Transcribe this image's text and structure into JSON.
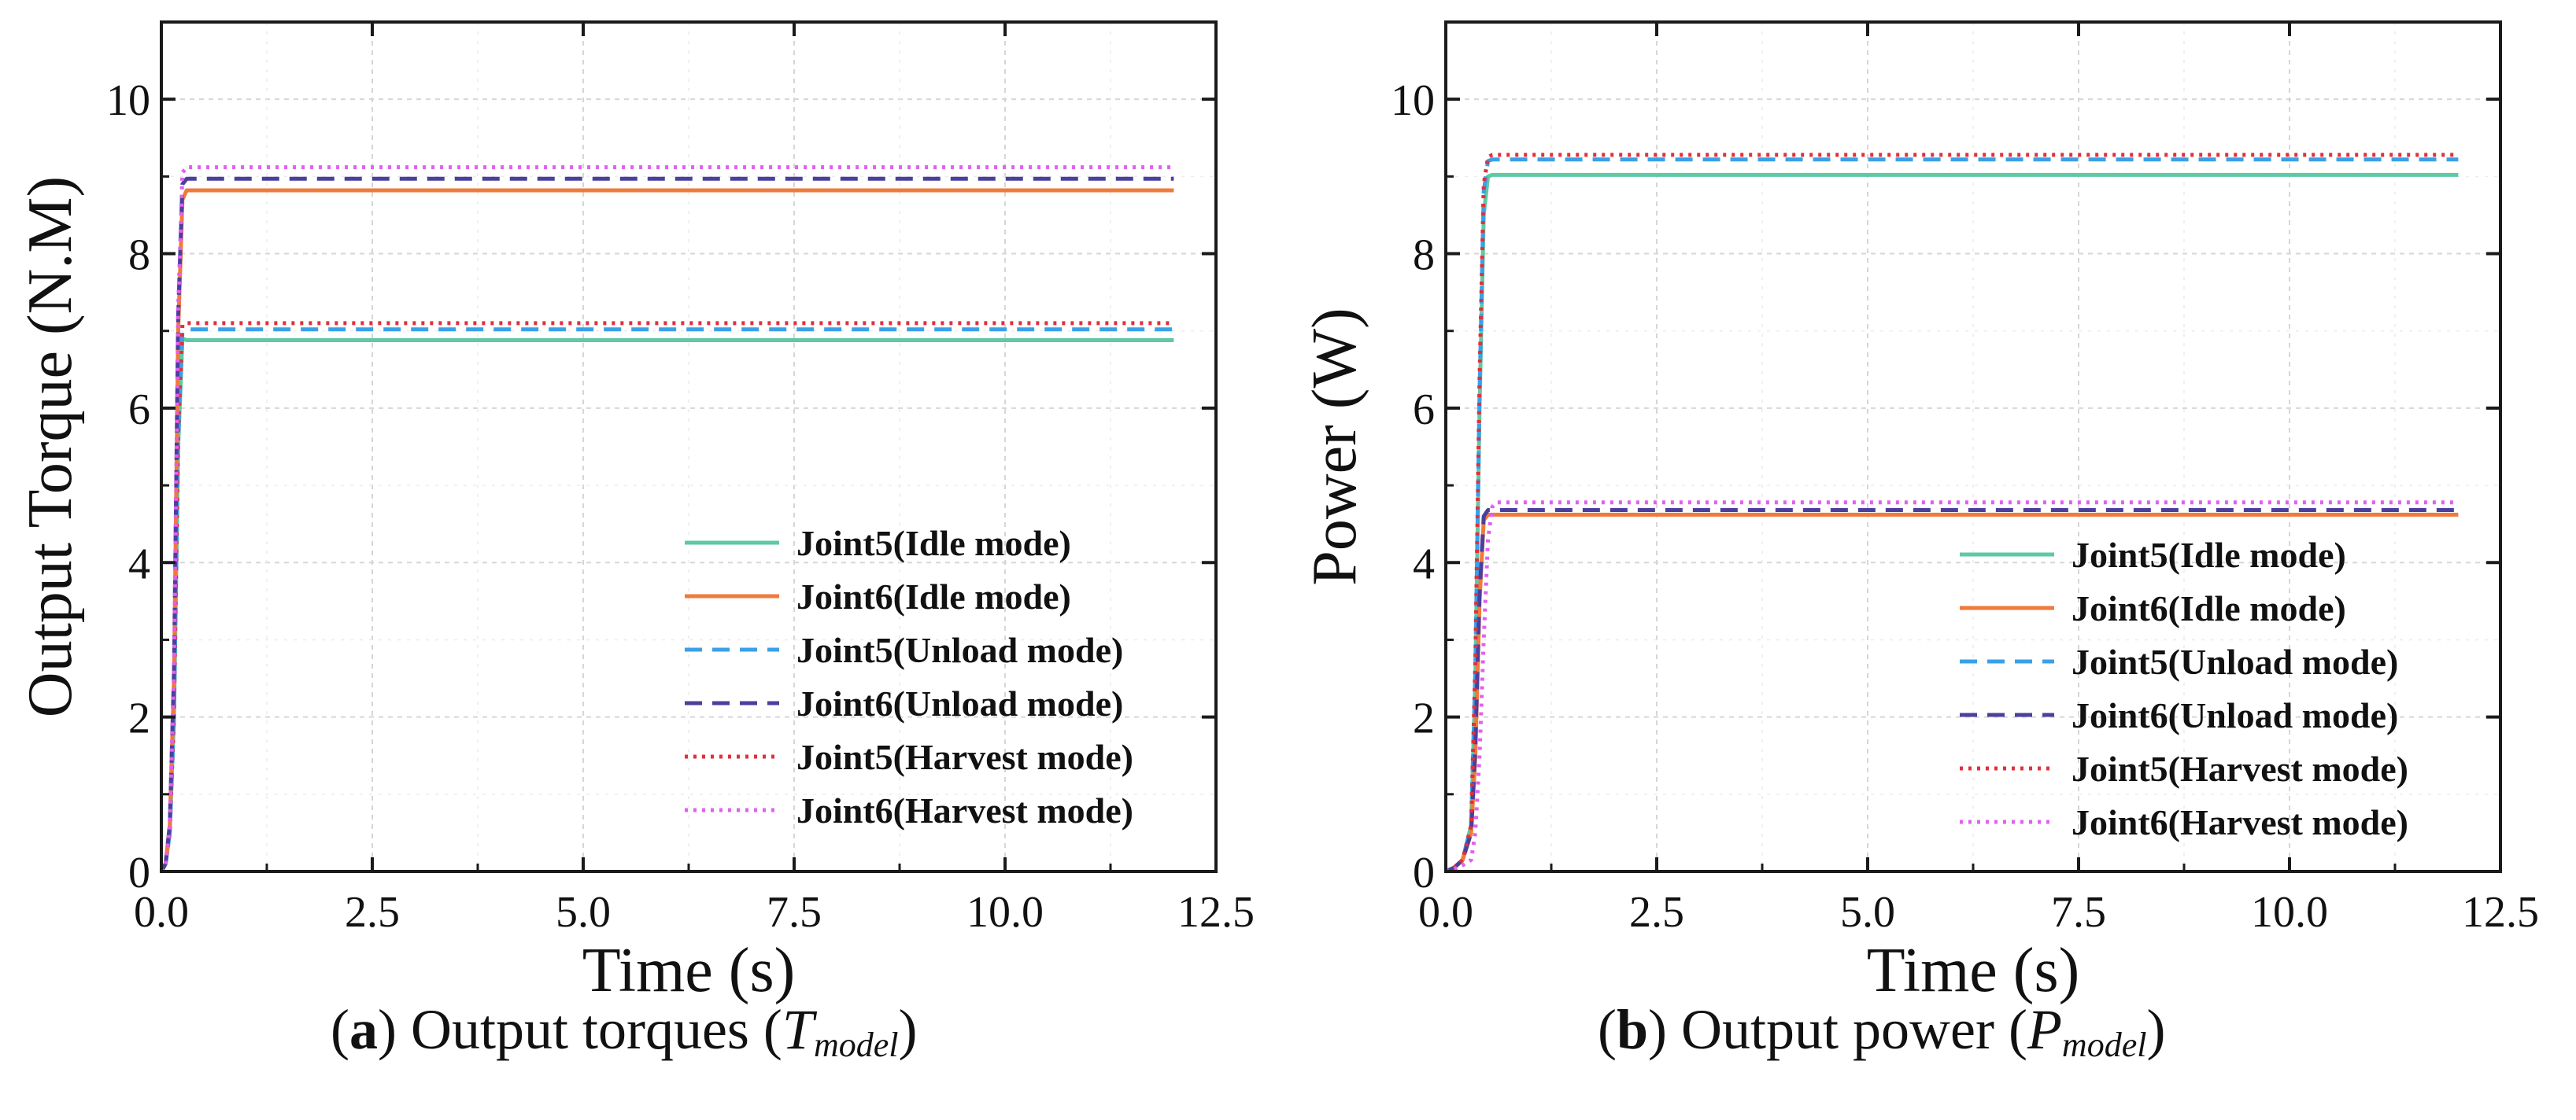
{
  "chart_data": [
    {
      "type": "line",
      "id": "a",
      "xlabel": "Time (s)",
      "ylabel": "Output Torque (N.M)",
      "xlim": [
        0,
        12.5
      ],
      "ylim": [
        0,
        11
      ],
      "xticks": [
        0,
        2.5,
        5,
        7.5,
        10,
        12.5
      ],
      "xtick_labels": [
        "0.0",
        "2.5",
        "5.0",
        "7.5",
        "10.0",
        "12.5"
      ],
      "yticks": [
        0,
        2,
        4,
        6,
        8,
        10
      ],
      "ytick_labels": [
        "0",
        "2",
        "4",
        "6",
        "8",
        "10"
      ],
      "grid": true,
      "legend_position": "bottom-right",
      "series": [
        {
          "name": "Joint5(Idle mode)",
          "color": "#5fc9a4",
          "dash": "solid",
          "x": [
            0,
            0.05,
            0.1,
            0.15,
            0.2,
            0.25,
            0.3,
            12
          ],
          "y": [
            0,
            0.1,
            0.5,
            2.0,
            5.5,
            6.9,
            6.88,
            6.88
          ]
        },
        {
          "name": "Joint6(Idle mode)",
          "color": "#f07a3c",
          "dash": "solid",
          "x": [
            0,
            0.05,
            0.1,
            0.15,
            0.2,
            0.25,
            0.3,
            12
          ],
          "y": [
            0,
            0.1,
            0.6,
            2.5,
            7.0,
            8.7,
            8.82,
            8.82
          ]
        },
        {
          "name": "Joint5(Unload mode)",
          "color": "#3aa0e8",
          "dash": "dashed",
          "x": [
            0,
            0.05,
            0.1,
            0.15,
            0.2,
            0.25,
            0.3,
            12
          ],
          "y": [
            0,
            0.1,
            0.5,
            2.0,
            5.6,
            7.0,
            7.02,
            7.02
          ]
        },
        {
          "name": "Joint6(Unload mode)",
          "color": "#4b3f9e",
          "dash": "dashed",
          "x": [
            0,
            0.05,
            0.1,
            0.15,
            0.2,
            0.25,
            0.3,
            12
          ],
          "y": [
            0,
            0.1,
            0.6,
            2.6,
            7.2,
            8.9,
            8.97,
            8.97
          ]
        },
        {
          "name": "Joint5(Harvest mode)",
          "color": "#e0303c",
          "dash": "dotted",
          "x": [
            0,
            0.05,
            0.1,
            0.15,
            0.2,
            0.25,
            0.3,
            12
          ],
          "y": [
            0,
            0.1,
            0.5,
            2.1,
            5.7,
            7.08,
            7.1,
            7.1
          ]
        },
        {
          "name": "Joint6(Harvest mode)",
          "color": "#e060f0",
          "dash": "dotted",
          "x": [
            0,
            0.05,
            0.1,
            0.15,
            0.2,
            0.25,
            0.3,
            12
          ],
          "y": [
            0,
            0.1,
            0.6,
            2.6,
            7.3,
            9.05,
            9.12,
            9.12
          ]
        }
      ]
    },
    {
      "type": "line",
      "id": "b",
      "xlabel": "Time (s)",
      "ylabel": "Power (W)",
      "xlim": [
        0,
        12.5
      ],
      "ylim": [
        0,
        11
      ],
      "xticks": [
        0,
        2.5,
        5,
        7.5,
        10,
        12.5
      ],
      "xtick_labels": [
        "0.0",
        "2.5",
        "5.0",
        "7.5",
        "10.0",
        "12.5"
      ],
      "yticks": [
        0,
        2,
        4,
        6,
        8,
        10
      ],
      "ytick_labels": [
        "0",
        "2",
        "4",
        "6",
        "8",
        "10"
      ],
      "grid": true,
      "legend_position": "bottom-right",
      "series": [
        {
          "name": "Joint5(Idle mode)",
          "color": "#5fc9a4",
          "dash": "solid",
          "x": [
            0,
            0.1,
            0.2,
            0.3,
            0.35,
            0.4,
            0.45,
            0.5,
            0.55,
            12
          ],
          "y": [
            0,
            0.05,
            0.15,
            0.6,
            2.5,
            6.0,
            8.5,
            9.0,
            9.02,
            9.02
          ]
        },
        {
          "name": "Joint6(Idle mode)",
          "color": "#f07a3c",
          "dash": "solid",
          "x": [
            0,
            0.1,
            0.2,
            0.3,
            0.35,
            0.4,
            0.45,
            0.5,
            0.55,
            12
          ],
          "y": [
            0,
            0.05,
            0.15,
            0.5,
            1.5,
            3.5,
            4.55,
            4.62,
            4.62,
            4.62
          ]
        },
        {
          "name": "Joint5(Unload mode)",
          "color": "#3aa0e8",
          "dash": "dashed",
          "x": [
            0,
            0.1,
            0.2,
            0.3,
            0.35,
            0.4,
            0.45,
            0.5,
            0.55,
            12
          ],
          "y": [
            0,
            0.05,
            0.15,
            0.6,
            2.6,
            6.2,
            8.8,
            9.2,
            9.22,
            9.22
          ]
        },
        {
          "name": "Joint6(Unload mode)",
          "color": "#4b3f9e",
          "dash": "dashed",
          "x": [
            0,
            0.1,
            0.2,
            0.3,
            0.35,
            0.4,
            0.45,
            0.5,
            0.55,
            12
          ],
          "y": [
            0,
            0.05,
            0.15,
            0.5,
            1.6,
            3.6,
            4.6,
            4.68,
            4.68,
            4.68
          ]
        },
        {
          "name": "Joint5(Harvest mode)",
          "color": "#e0303c",
          "dash": "dotted",
          "x": [
            0,
            0.1,
            0.2,
            0.3,
            0.35,
            0.4,
            0.45,
            0.5,
            0.55,
            12
          ],
          "y": [
            0,
            0.05,
            0.15,
            0.6,
            2.7,
            6.4,
            8.9,
            9.25,
            9.28,
            9.28
          ]
        },
        {
          "name": "Joint6(Harvest mode)",
          "color": "#e060f0",
          "dash": "dotted",
          "x": [
            0,
            0.1,
            0.2,
            0.3,
            0.35,
            0.4,
            0.45,
            0.5,
            0.55,
            0.6,
            12
          ],
          "y": [
            0,
            0.03,
            0.08,
            0.15,
            0.5,
            1.5,
            3.0,
            4.3,
            4.72,
            4.78,
            4.78
          ]
        }
      ]
    }
  ],
  "captions": [
    {
      "label": "a",
      "text": " Output torques (",
      "symbol": "T",
      "subscript": "model",
      "close": ")"
    },
    {
      "label": "b",
      "text": " Output power (",
      "symbol": "P",
      "subscript": "model",
      "close": ")"
    }
  ]
}
